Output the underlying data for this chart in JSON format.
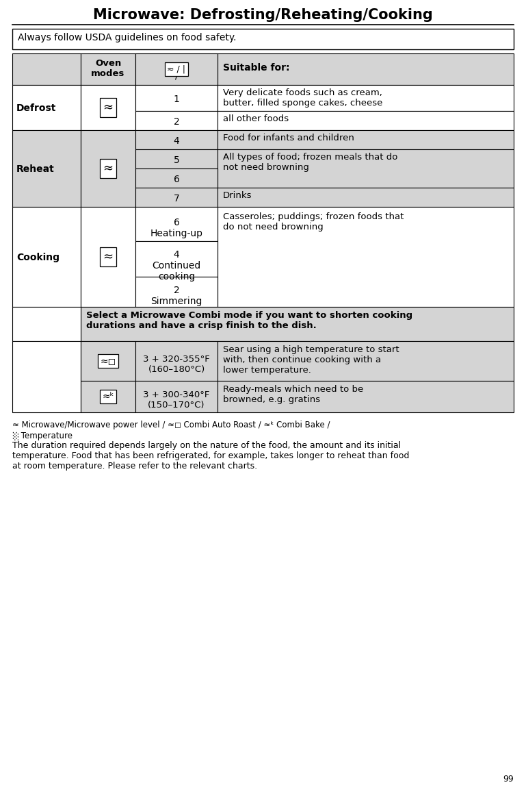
{
  "title": "Microwave: Defrosting/Reheating/Cooking",
  "page_number": "99",
  "safety_note": "Always follow USDA guidelines on food safety.",
  "header_bg": "#d4d4d4",
  "border_color": "#000000",
  "footnote_line1": "≈ Microwave/Microwave power level / ≈◻ Combi Auto Roast / ≈ᵏ Combi Bake /",
  "footnote_line2": "☃ Temperature",
  "footnote_body": "The duration required depends largely on the nature of the food, the amount and its initial\ntemperature. Food that has been refrigerated, for example, takes longer to reheat than food\nat room temperature. Please refer to the relevant charts.",
  "select_note": "Select a Microwave Combi mode if you want to shorten cooking\ndurations and have a crisp finish to the dish.",
  "combi1_temp": "3 + 320-355°F\n(160–180°C)",
  "combi1_desc": "Sear using a high temperature to start\nwith, then continue cooking with a\nlower temperature.",
  "combi2_temp": "3 + 300-340°F\n(150–170°C)",
  "combi2_desc": "Ready-meals which need to be\nbrowned, e.g. gratins"
}
